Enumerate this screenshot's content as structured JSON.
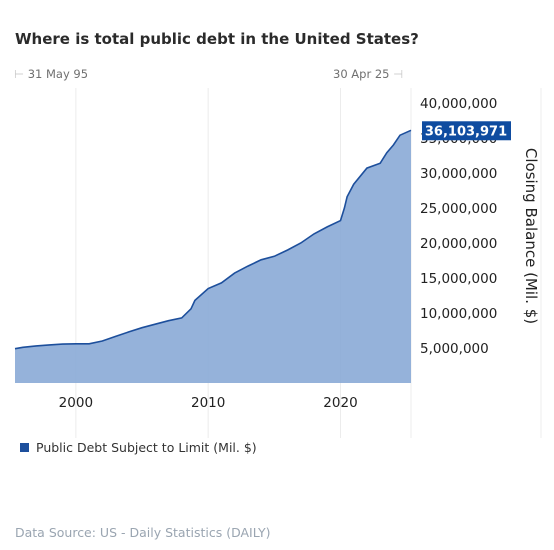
{
  "title": "Where is total public debt in the United States?",
  "range": {
    "start": "31 May 95",
    "end": "30 Apr 25"
  },
  "legend": {
    "label": "Public Debt Subject to Limit (Mil. $)"
  },
  "source": "Data Source: US - Daily Statistics (DAILY)",
  "colors": {
    "series": "#1d4f9c",
    "fill": "#8aaad6"
  },
  "chart_data": {
    "type": "area",
    "ylabel": "Closing Balance (Mil. $)",
    "xlabel": "",
    "xlim": [
      1995.4,
      2025.33
    ],
    "ylim": [
      0,
      40000000
    ],
    "yticks": [
      5000000,
      10000000,
      15000000,
      20000000,
      25000000,
      30000000,
      35000000,
      40000000
    ],
    "ytick_labels": [
      "5,000,000",
      "10,000,000",
      "15,000,000",
      "20,000,000",
      "25,000,000",
      "30,000,000",
      "35,000,000",
      "40,000,000"
    ],
    "xticks": [
      2000,
      2010,
      2020
    ],
    "xtick_labels": [
      "2000",
      "2010",
      "2020"
    ],
    "last_value_label": "36,103,971",
    "last_value": 36103971,
    "grid": true,
    "legend_position": "bottom-left",
    "series": [
      {
        "name": "Public Debt Subject to Limit (Mil. $)",
        "x": [
          1995.4,
          1996,
          1997,
          1998,
          1999,
          2000,
          2001,
          2002,
          2003,
          2004,
          2005,
          2006,
          2007,
          2008,
          2008.7,
          2009,
          2010,
          2011,
          2012,
          2013,
          2014,
          2015,
          2016,
          2017,
          2018,
          2019,
          2020,
          2020.3,
          2020.5,
          2021,
          2022,
          2023,
          2023.5,
          2024,
          2024.5,
          2025.33
        ],
        "y": [
          4900000,
          5100000,
          5300000,
          5450000,
          5550000,
          5600000,
          5600000,
          6000000,
          6650000,
          7300000,
          7900000,
          8400000,
          8900000,
          9300000,
          10600000,
          11800000,
          13500000,
          14300000,
          15700000,
          16700000,
          17600000,
          18100000,
          19000000,
          20000000,
          21300000,
          22300000,
          23200000,
          25000000,
          26600000,
          28400000,
          30700000,
          31400000,
          32900000,
          34000000,
          35400000,
          36103971
        ]
      }
    ]
  }
}
